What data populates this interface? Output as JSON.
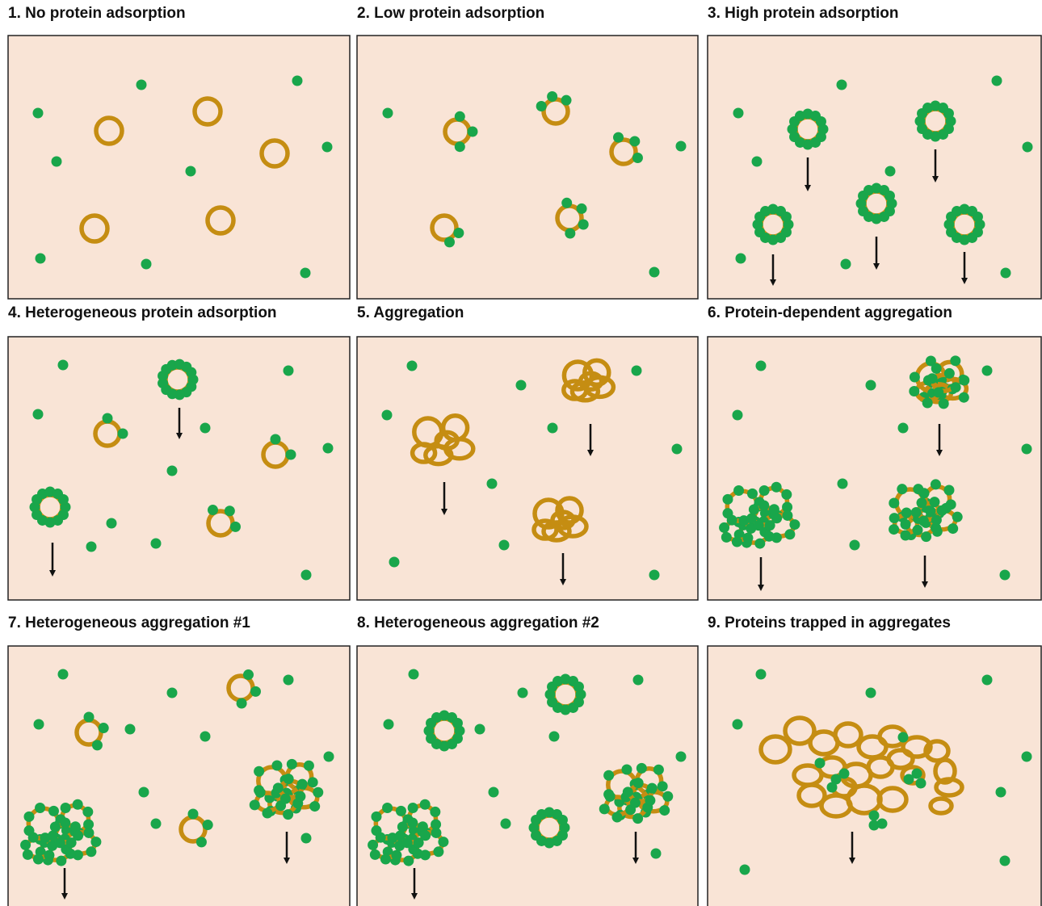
{
  "panels": [
    {
      "title": "1. No protein adsorption"
    },
    {
      "title": "2. Low protein adsorption"
    },
    {
      "title": "3. High protein adsorption"
    },
    {
      "title": "4. Heterogeneous protein adsorption"
    },
    {
      "title": "5. Aggregation"
    },
    {
      "title": "6. Protein-dependent aggregation"
    },
    {
      "title": "7. Heterogeneous aggregation #1"
    },
    {
      "title": "8. Heterogeneous aggregation #2"
    },
    {
      "title": "9. Proteins trapped in aggregates"
    }
  ]
}
